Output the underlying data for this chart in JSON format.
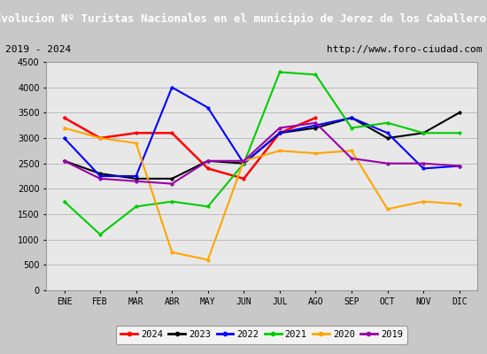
{
  "title": "Evolucion Nº Turistas Nacionales en el municipio de Jerez de los Caballeros",
  "title_bg": "#4472c4",
  "subtitle_left": "2019 - 2024",
  "subtitle_right": "http://www.foro-ciudad.com",
  "months": [
    "ENE",
    "FEB",
    "MAR",
    "ABR",
    "MAY",
    "JUN",
    "JUL",
    "AGO",
    "SEP",
    "OCT",
    "NOV",
    "DIC"
  ],
  "ylim": [
    0,
    4500
  ],
  "yticks": [
    0,
    500,
    1000,
    1500,
    2000,
    2500,
    3000,
    3500,
    4000,
    4500
  ],
  "series": {
    "2024": {
      "color": "#ff0000",
      "values": [
        3400,
        3000,
        3100,
        3100,
        2400,
        2200,
        3100,
        3400,
        null,
        null,
        null,
        null
      ]
    },
    "2023": {
      "color": "#000000",
      "values": [
        2550,
        2300,
        2200,
        2200,
        2550,
        2500,
        3100,
        3200,
        3400,
        3000,
        3100,
        3500
      ]
    },
    "2022": {
      "color": "#0000ff",
      "values": [
        3000,
        2250,
        2250,
        4000,
        3600,
        2500,
        3100,
        3250,
        3400,
        3100,
        2400,
        2450
      ]
    },
    "2021": {
      "color": "#00cc00",
      "values": [
        1750,
        1100,
        1650,
        1750,
        1650,
        2500,
        4300,
        4250,
        3200,
        3300,
        3100,
        3100
      ]
    },
    "2020": {
      "color": "#ffa500",
      "values": [
        3200,
        3000,
        2900,
        750,
        600,
        2550,
        2750,
        2700,
        2750,
        1600,
        1750,
        1700
      ]
    },
    "2019": {
      "color": "#9900aa",
      "values": [
        2550,
        2200,
        2150,
        2100,
        2550,
        2550,
        3200,
        3300,
        2600,
        2500,
        2500,
        2450
      ]
    }
  },
  "legend_order": [
    "2024",
    "2023",
    "2022",
    "2021",
    "2020",
    "2019"
  ],
  "fig_bg": "#c8c8c8",
  "plot_bg": "#e8e8e8",
  "grid_color": "#bbbbbb"
}
